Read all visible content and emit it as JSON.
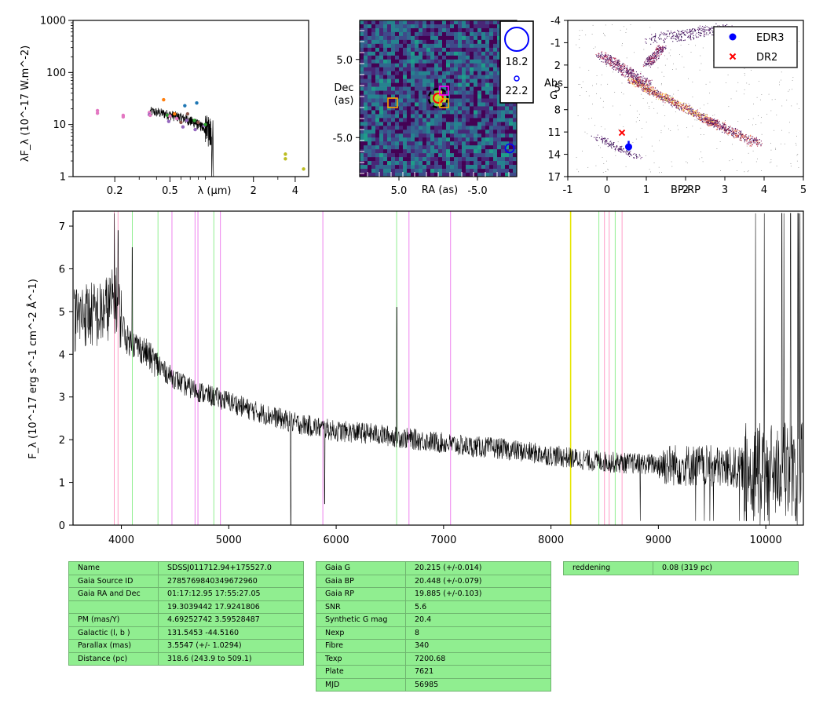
{
  "chart_data": [
    {
      "type": "scatter",
      "name_hint": "sed",
      "xlabel": "λ (μm)",
      "ylabel": "λF_λ (10^-17 W.m^-2)",
      "xscale": "log",
      "yscale": "log",
      "xlim": [
        0.1,
        5.0
      ],
      "ylim": [
        1,
        1000
      ],
      "xticks": [
        {
          "v": 0.2,
          "t": "0.2"
        },
        {
          "v": 0.5,
          "t": "0.5"
        },
        {
          "v": 2,
          "t": "2"
        },
        {
          "v": 4,
          "t": "4"
        }
      ],
      "yticks": [
        {
          "v": 1,
          "t": "1"
        },
        {
          "v": 10,
          "t": "10"
        },
        {
          "v": 100,
          "t": "100"
        },
        {
          "v": 1000,
          "t": "1000"
        }
      ],
      "points": [
        {
          "x": 0.15,
          "y": 18.5,
          "color": "#e377c2"
        },
        {
          "x": 0.15,
          "y": 16.5,
          "color": "#e377c2"
        },
        {
          "x": 0.23,
          "y": 15,
          "color": "#e377c2"
        },
        {
          "x": 0.23,
          "y": 14,
          "color": "#e377c2"
        },
        {
          "x": 0.355,
          "y": 17,
          "color": "#e377c2"
        },
        {
          "x": 0.355,
          "y": 15.5,
          "color": "#9467bd"
        },
        {
          "x": 0.36,
          "y": 15,
          "color": "#e377c2"
        },
        {
          "x": 0.45,
          "y": 30,
          "color": "#ff7f0e"
        },
        {
          "x": 0.48,
          "y": 15,
          "color": "#2ca02c"
        },
        {
          "x": 0.49,
          "y": 11.5,
          "color": "#9467bd"
        },
        {
          "x": 0.5,
          "y": 14.5,
          "color": "#e377c2"
        },
        {
          "x": 0.54,
          "y": 16,
          "color": "#ff7f0e"
        },
        {
          "x": 0.56,
          "y": 13,
          "color": "#e377c2"
        },
        {
          "x": 0.6,
          "y": 11,
          "color": "#8c564b"
        },
        {
          "x": 0.62,
          "y": 9,
          "color": "#9467bd"
        },
        {
          "x": 0.64,
          "y": 23,
          "color": "#1f77b4"
        },
        {
          "x": 0.67,
          "y": 16,
          "color": "#8c564b"
        },
        {
          "x": 0.66,
          "y": 12,
          "color": "#9467bd"
        },
        {
          "x": 0.75,
          "y": 12,
          "color": "#2ca02c"
        },
        {
          "x": 0.78,
          "y": 26,
          "color": "#1f77b4"
        },
        {
          "x": 0.76,
          "y": 8,
          "color": "#9467bd"
        },
        {
          "x": 0.8,
          "y": 11,
          "color": "#8c564b"
        },
        {
          "x": 0.88,
          "y": 9.5,
          "color": "#9467bd"
        },
        {
          "x": 0.9,
          "y": 10,
          "color": "#2ca02c"
        },
        {
          "x": 3.4,
          "y": 2.7,
          "color": "#bcbd22"
        },
        {
          "x": 3.4,
          "y": 2.2,
          "color": "#bcbd22"
        },
        {
          "x": 4.6,
          "y": 1.4,
          "color": "#bcbd22"
        }
      ]
    },
    {
      "type": "heatmap",
      "name_hint": "image-cutout",
      "xlabel": "RA (as)",
      "ylabel": "Dec (as)",
      "xlim": [
        10.0,
        -10.0
      ],
      "ylim": [
        -10.0,
        10.0
      ],
      "xticks": [
        {
          "v": 5.0,
          "t": "5.0"
        },
        {
          "v": -5.0,
          "t": "-5.0"
        }
      ],
      "yticks": [
        {
          "v": 5.0,
          "t": "5.0"
        },
        {
          "v": -5.0,
          "t": "-5.0"
        }
      ],
      "mag_legend": [
        {
          "label": "18.2"
        },
        {
          "label": "22.2"
        }
      ]
    },
    {
      "type": "scatter",
      "name_hint": "hr-diagram",
      "xlabel": "BP-RP",
      "ylabel": "Abs G",
      "xlim": [
        -1,
        5
      ],
      "ylim": [
        17,
        -4
      ],
      "xticks": [
        "-1",
        "0",
        "1",
        "2",
        "3",
        "4",
        "5"
      ],
      "yticks": [
        "-4",
        "-1",
        "2",
        "5",
        "8",
        "11",
        "14",
        "17"
      ],
      "series": [
        {
          "name": "EDR3",
          "x": 0.55,
          "y": 13.0,
          "yerr": [
            12.2,
            13.5
          ],
          "color": "#0000ff",
          "marker": "circle"
        },
        {
          "name": "DR2",
          "x": 0.38,
          "y": 11.1,
          "color": "#ff0000",
          "marker": "x"
        }
      ],
      "legend": "top-right"
    },
    {
      "type": "line",
      "name_hint": "spectrum",
      "xlabel": "",
      "ylabel": "F_λ (10^-17 erg s^-1 cm^-2 Å^-1)",
      "xlim": [
        3550,
        10350
      ],
      "ylim": [
        0,
        7.35
      ],
      "xticks": [
        "4000",
        "5000",
        "6000",
        "7000",
        "8000",
        "9000",
        "10000"
      ],
      "yticks": [
        "0",
        "1",
        "2",
        "3",
        "4",
        "5",
        "6",
        "7"
      ],
      "continuum": [
        [
          3560,
          4.8
        ],
        [
          3650,
          4.95
        ],
        [
          3800,
          4.9
        ],
        [
          3950,
          5.3
        ],
        [
          4050,
          4.35
        ],
        [
          4200,
          4.1
        ],
        [
          4400,
          3.6
        ],
        [
          4600,
          3.25
        ],
        [
          4800,
          3.05
        ],
        [
          5000,
          2.9
        ],
        [
          5200,
          2.7
        ],
        [
          5400,
          2.55
        ],
        [
          5600,
          2.4
        ],
        [
          5800,
          2.3
        ],
        [
          6000,
          2.2
        ],
        [
          6300,
          2.15
        ],
        [
          6600,
          2.05
        ],
        [
          6900,
          1.95
        ],
        [
          7200,
          1.85
        ],
        [
          7500,
          1.8
        ],
        [
          7800,
          1.7
        ],
        [
          8100,
          1.6
        ],
        [
          8400,
          1.5
        ],
        [
          8700,
          1.45
        ],
        [
          9000,
          1.42
        ],
        [
          9300,
          1.4
        ],
        [
          9600,
          1.35
        ],
        [
          9900,
          1.3
        ],
        [
          10350,
          1.3
        ]
      ],
      "spikes": [
        [
          5577,
          0
        ],
        [
          5893,
          0.5
        ],
        [
          6565,
          5.1
        ],
        [
          3935,
          7.3
        ],
        [
          3970,
          6.9
        ],
        [
          4102,
          6.5
        ],
        [
          10150,
          7.3
        ],
        [
          10230,
          7.3
        ],
        [
          10300,
          7.3
        ]
      ],
      "vlines": [
        {
          "x": 3934,
          "color": "#ff9ec8"
        },
        {
          "x": 3969,
          "color": "#ff9ec8"
        },
        {
          "x": 4102,
          "color": "#90ee90"
        },
        {
          "x": 4341,
          "color": "#90ee90"
        },
        {
          "x": 4471,
          "color": "#ee82ee"
        },
        {
          "x": 4686,
          "color": "#ee82ee"
        },
        {
          "x": 4713,
          "color": "#ee82ee"
        },
        {
          "x": 4861,
          "color": "#90ee90"
        },
        {
          "x": 4922,
          "color": "#ee82ee"
        },
        {
          "x": 5876,
          "color": "#ee82ee"
        },
        {
          "x": 6563,
          "color": "#90ee90"
        },
        {
          "x": 6678,
          "color": "#ee82ee"
        },
        {
          "x": 7065,
          "color": "#ee82ee"
        },
        {
          "x": 8183,
          "color": "#e5e500"
        },
        {
          "x": 8446,
          "color": "#90ee90"
        },
        {
          "x": 8498,
          "color": "#ff9ec8"
        },
        {
          "x": 8542,
          "color": "#ff9ec8"
        },
        {
          "x": 8598,
          "color": "#90ee90"
        },
        {
          "x": 8662,
          "color": "#ff9ec8"
        }
      ]
    }
  ],
  "info_table_1": [
    [
      "Name",
      "SDSSJ011712.94+175527.0"
    ],
    [
      "Gaia Source ID",
      "2785769840349672960"
    ],
    [
      "Gaia RA and Dec",
      "01:17:12.95     17:55:27.05"
    ],
    [
      "",
      "19.3039442     17.9241806"
    ],
    [
      "PM (mas/Y)",
      "4.69252742     3.59528487"
    ],
    [
      "Galactic (l, b )",
      "131.5453     -44.5160"
    ],
    [
      "Parallax (mas)",
      "3.5547 (+/- 1.0294)"
    ],
    [
      "Distance (pc)",
      "318.6 (243.9 to 509.1)"
    ]
  ],
  "info_table_2": [
    [
      "Gaia G",
      "20.215 (+/-0.014)"
    ],
    [
      "Gaia BP",
      "20.448 (+/-0.079)"
    ],
    [
      "Gaia RP",
      "19.885 (+/-0.103)"
    ],
    [
      "SNR",
      "5.6"
    ],
    [
      "Synthetic G mag",
      "20.4"
    ],
    [
      "Nexp",
      "8"
    ],
    [
      "Fibre",
      "340"
    ],
    [
      "Texp",
      "7200.68"
    ],
    [
      "Plate",
      "7621"
    ],
    [
      "MJD",
      "56985"
    ]
  ],
  "info_table_3": [
    [
      "reddening",
      "0.08 (319 pc)"
    ]
  ],
  "colors": {
    "table_bg": "#90ee90",
    "edr3": "#0000ff",
    "dr2": "#ff0000"
  }
}
